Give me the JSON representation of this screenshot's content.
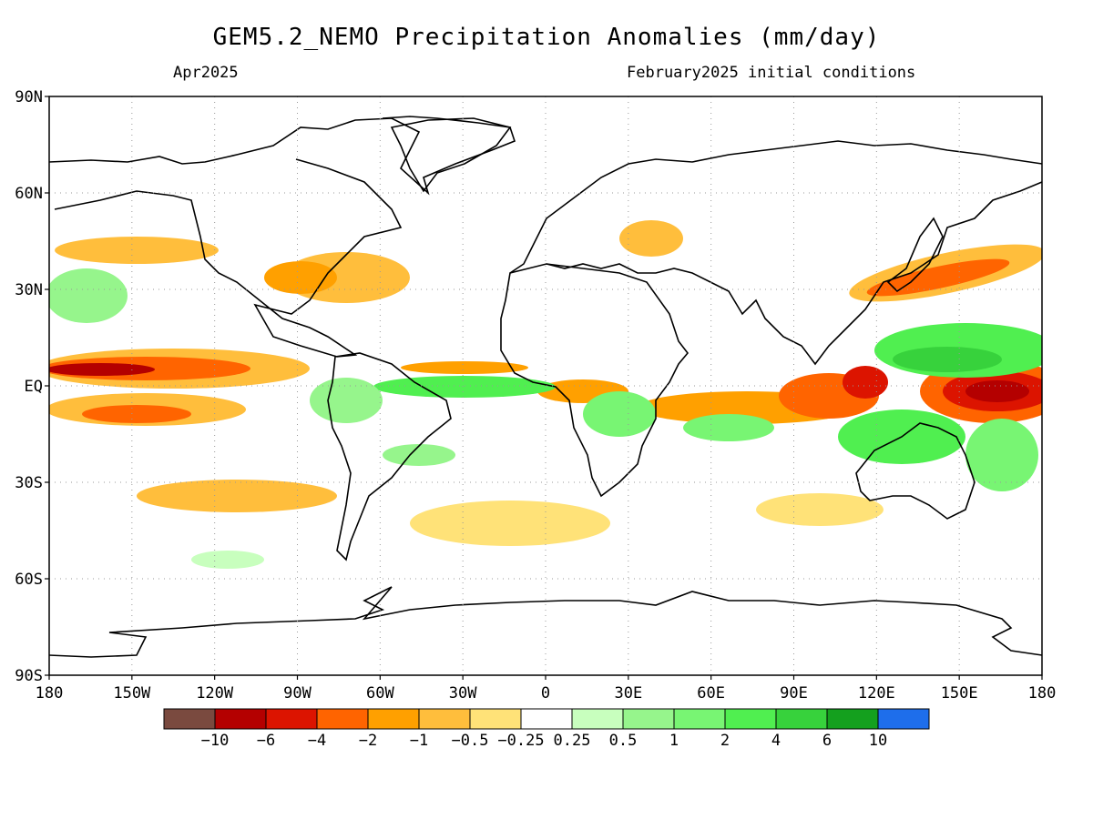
{
  "title": "GEM5.2_NEMO Precipitation Anomalies (mm/day)",
  "subtitle_left": "Apr2025",
  "subtitle_right": "February2025 initial conditions",
  "map": {
    "lat_labels": [
      "90N",
      "60N",
      "30N",
      "EQ",
      "30S",
      "60S",
      "90S"
    ],
    "lon_labels": [
      "180",
      "150W",
      "120W",
      "90W",
      "60W",
      "30W",
      "0",
      "30E",
      "60E",
      "90E",
      "120E",
      "150E",
      "180"
    ],
    "grid": "dotted",
    "land_outline_color": "#000000"
  },
  "legend": {
    "tick_labels": [
      "−10",
      "−6",
      "−4",
      "−2",
      "−1",
      "−0.5",
      "−0.25",
      "0.25",
      "0.5",
      "1",
      "2",
      "4",
      "6",
      "10"
    ],
    "colors": [
      "#7a4a3f",
      "#b40000",
      "#dc1400",
      "#ff6400",
      "#ffa000",
      "#ffbe3c",
      "#ffe278",
      "#ffffff",
      "#c8ffbe",
      "#96f58c",
      "#78f573",
      "#50ef50",
      "#37d23c",
      "#14a01e",
      "#1e6eeb"
    ]
  },
  "anomaly_colors": {
    "deep_dry": "#b40000",
    "dry_strong": "#dc1400",
    "dry_mod": "#ff6400",
    "dry": "#ffa000",
    "dry_weak": "#ffbe3c",
    "dry_light": "#ffe278",
    "wet_light": "#c8ffbe",
    "wet_weak": "#96f58c",
    "wet": "#78f573",
    "wet_mod": "#50ef50",
    "wet_strong": "#37d23c",
    "wet_deep": "#14a01e"
  }
}
